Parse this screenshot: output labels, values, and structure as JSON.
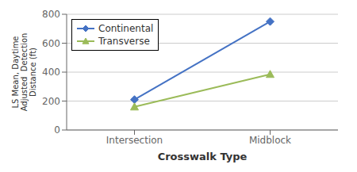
{
  "chart_data": {
    "type": "line",
    "categories": [
      "Intersection",
      "Midblock"
    ],
    "series": [
      {
        "name": "Continental",
        "color": "#4472C4",
        "marker": "diamond",
        "values": [
          210,
          750
        ]
      },
      {
        "name": "Transverse",
        "color": "#9BBB59",
        "marker": "triangle",
        "values": [
          160,
          385
        ]
      }
    ],
    "xlabel": "Crosswalk Type",
    "ylabel": "LS Mean, Daytime\nAdjusted  Detection\nDistance (ft)",
    "ylim": [
      0,
      800
    ],
    "yticks": [
      0,
      200,
      400,
      600,
      800
    ],
    "grid": true,
    "legend": "upper left"
  }
}
